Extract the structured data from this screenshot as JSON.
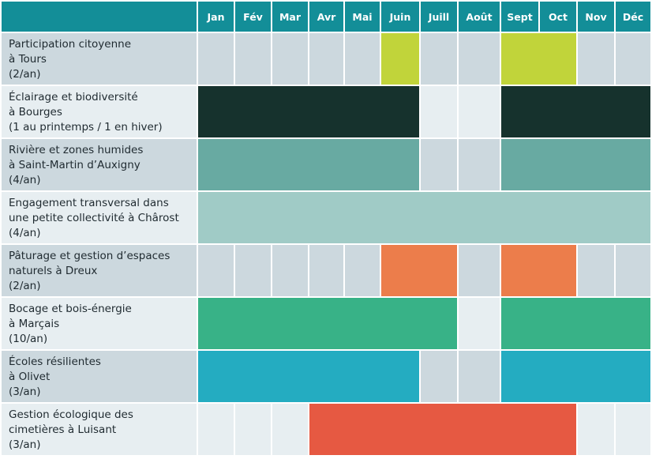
{
  "months": [
    "Jan",
    "Fév",
    "Mar",
    "Avr",
    "Mai",
    "Juin",
    "Juill",
    "Août",
    "Sept",
    "Oct",
    "Nov",
    "Déc"
  ],
  "colors": {
    "header": "#138e98",
    "cell_dark": "#ccd8de",
    "cell_light": "#e7eef1",
    "label_dark": "#ccd8de",
    "label_light": "#e7eef1"
  },
  "rows": [
    {
      "lines": [
        "Participation citoyenne",
        "à Tours",
        "(2/an)"
      ],
      "color": "#c1d43a",
      "spans": [
        [
          5,
          5
        ],
        [
          8,
          9
        ]
      ]
    },
    {
      "lines": [
        "Éclairage et biodiversité",
        "à Bourges",
        "(1 au printemps / 1 en hiver)"
      ],
      "color": "#16322d",
      "spans": [
        [
          0,
          5
        ],
        [
          8,
          11
        ]
      ]
    },
    {
      "lines": [
        "Rivière et zones humides",
        "à Saint-Martin d’Auxigny",
        "(4/an)"
      ],
      "color": "#68aaa2",
      "spans": [
        [
          0,
          5
        ],
        [
          8,
          11
        ]
      ]
    },
    {
      "lines": [
        "Engagement transversal dans",
        "une petite collectivité à Chârost",
        "(4/an)"
      ],
      "color": "#a0cbc6",
      "spans": [
        [
          0,
          11
        ]
      ]
    },
    {
      "lines": [
        "Pâturage et gestion d’espaces",
        "naturels à Dreux",
        "(2/an)"
      ],
      "color": "#ec7d4b",
      "spans": [
        [
          5,
          6
        ],
        [
          8,
          9
        ]
      ]
    },
    {
      "lines": [
        "Bocage et bois-énergie",
        "à Marçais",
        "(10/an)"
      ],
      "color": "#38b287",
      "spans": [
        [
          0,
          6
        ],
        [
          8,
          11
        ]
      ]
    },
    {
      "lines": [
        "Écoles résilientes",
        "à Olivet",
        "(3/an)"
      ],
      "color": "#24acc1",
      "spans": [
        [
          0,
          5
        ],
        [
          8,
          11
        ]
      ]
    },
    {
      "lines": [
        "Gestion écologique des",
        "cimetières à Luisant",
        "(3/an)"
      ],
      "color": "#e65942",
      "spans": [
        [
          3,
          9
        ]
      ]
    }
  ]
}
